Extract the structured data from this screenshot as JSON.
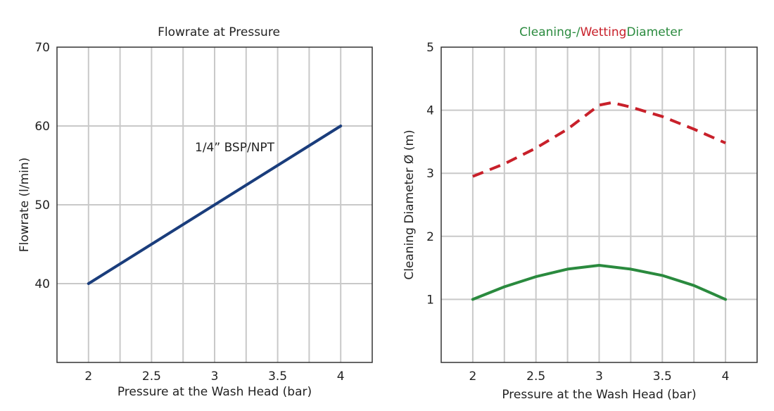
{
  "chart_data": [
    {
      "type": "line",
      "title": "Flowrate at Pressure",
      "xlabel": "Pressure at the Wash Head (bar)",
      "ylabel": "Flowrate (l/min)",
      "xlim": [
        1.75,
        4.25
      ],
      "ylim": [
        30,
        70
      ],
      "x_ticks": [
        "2",
        "2.5",
        "3",
        "3.5",
        "4"
      ],
      "y_ticks": [
        "40",
        "50",
        "60",
        "70"
      ],
      "grid": true,
      "annotations": [
        {
          "text": "1/4” BSP/NPT"
        }
      ],
      "series": [
        {
          "color": "#1a3d7c",
          "style": "solid",
          "x": [
            2,
            4
          ],
          "y": [
            40,
            60
          ]
        }
      ]
    },
    {
      "type": "line",
      "title_parts": [
        {
          "text": "Cleaning-/",
          "color": "#2a8a3e"
        },
        {
          "text": "Wetting",
          "color": "#c8202a"
        },
        {
          "text": "Diameter",
          "color": "#2a8a3e"
        }
      ],
      "xlabel": "Pressure at the Wash Head (bar)",
      "ylabel": "Cleaning Diameter Ø (m)",
      "xlim": [
        1.75,
        4.25
      ],
      "ylim": [
        0,
        5
      ],
      "x_ticks": [
        "2",
        "2.5",
        "3",
        "3.5",
        "4"
      ],
      "y_ticks": [
        "1",
        "2",
        "3",
        "4",
        "5"
      ],
      "grid": true,
      "series": [
        {
          "color": "#c8202a",
          "style": "dashed",
          "x": [
            2,
            2.25,
            2.5,
            2.75,
            3,
            3.1,
            3.25,
            3.5,
            3.75,
            4
          ],
          "y": [
            2.95,
            3.15,
            3.4,
            3.7,
            4.08,
            4.12,
            4.05,
            3.9,
            3.7,
            3.48
          ]
        },
        {
          "color": "#2a8a3e",
          "style": "solid",
          "x": [
            2,
            2.25,
            2.5,
            2.75,
            3,
            3.25,
            3.5,
            3.75,
            4
          ],
          "y": [
            1.0,
            1.2,
            1.36,
            1.48,
            1.54,
            1.48,
            1.38,
            1.22,
            1.0
          ]
        }
      ]
    }
  ]
}
